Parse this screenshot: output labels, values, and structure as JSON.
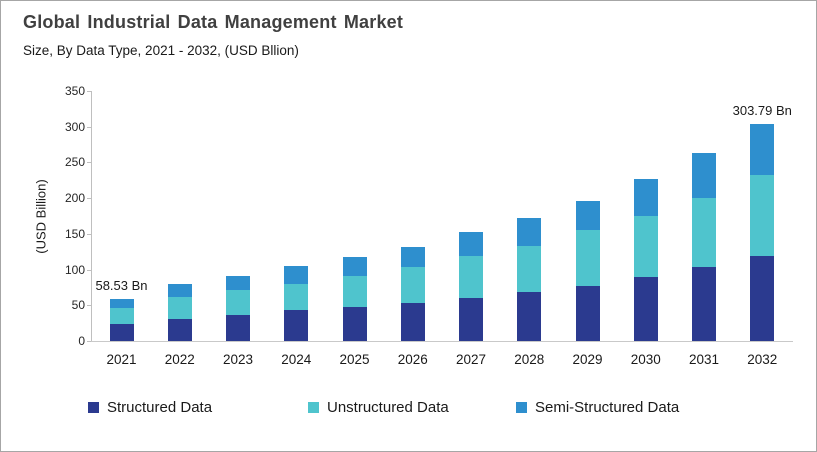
{
  "header": {
    "title": "Global Industrial Data Management Market",
    "subtitle": "Size, By Data Type, 2021 - 2032, (USD Bllion)"
  },
  "chart_data": {
    "type": "bar",
    "stacked": true,
    "title": "Global Industrial Data Management Market",
    "subtitle": "Size, By Data Type, 2021 - 2032, (USD Bllion)",
    "xlabel": "",
    "ylabel": "(USD Billion)",
    "ylim": [
      0,
      350
    ],
    "ytick_step": 50,
    "grid": false,
    "legend_position": "bottom",
    "categories": [
      "2021",
      "2022",
      "2023",
      "2024",
      "2025",
      "2026",
      "2027",
      "2028",
      "2029",
      "2030",
      "2031",
      "2032"
    ],
    "series": [
      {
        "name": "Structured Data",
        "color": "#2b3a8f",
        "values": [
          23.4,
          31.5,
          36.7,
          43.2,
          47.4,
          52.7,
          60.2,
          68.2,
          77.6,
          89.3,
          103.8,
          118.8
        ]
      },
      {
        "name": "Unstructured Data",
        "color": "#4fc4cd",
        "values": [
          22.3,
          29.5,
          35.2,
          36.1,
          43.6,
          51.1,
          58.6,
          65.1,
          77.8,
          85.8,
          97.0,
          114.3
        ]
      },
      {
        "name": "Semi-Structured Data",
        "color": "#2e8fce",
        "values": [
          12.8,
          19.3,
          19.4,
          25.7,
          26.7,
          28.1,
          33.3,
          39.4,
          41.2,
          51.6,
          61.9,
          70.7
        ]
      }
    ],
    "totals_labeled": {
      "2021": "58.53 Bn",
      "2032": "303.79 Bn"
    },
    "annotations": [
      {
        "category": "2021",
        "text": "58.53 Bn"
      },
      {
        "category": "2032",
        "text": "303.79 Bn"
      }
    ]
  },
  "colors": {
    "structured": "#2b3a8f",
    "unstructured": "#4fc4cd",
    "semi_structured": "#2e8fce",
    "axis_line": "#bfbfbf",
    "baseline": "#c9c9c9",
    "border": "#a6a6a6",
    "title_text": "#404040",
    "body_text": "#1a1a1a"
  }
}
